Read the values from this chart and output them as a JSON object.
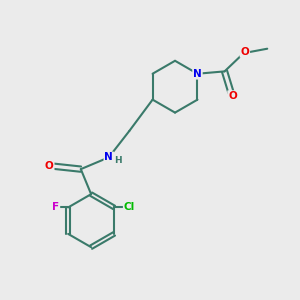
{
  "background_color": "#ebebeb",
  "bond_color": "#3a7a6a",
  "atom_colors": {
    "N": "#0000ee",
    "O": "#ee0000",
    "F": "#cc00cc",
    "Cl": "#00bb00",
    "C": "#3a7a6a"
  }
}
